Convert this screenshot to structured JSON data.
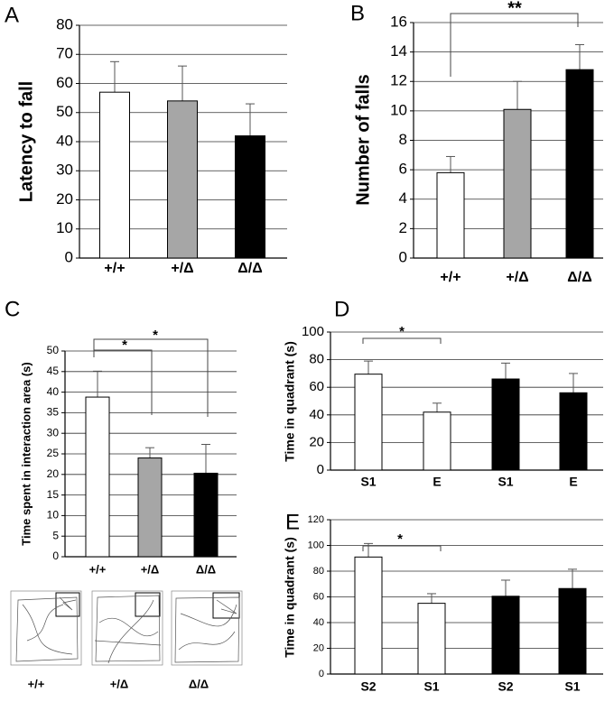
{
  "chart_data": [
    {
      "type": "bar",
      "panel": "A",
      "ylabel": "Latency to fall",
      "categories": [
        "+/+",
        "+/Δ",
        "Δ/Δ"
      ],
      "values": [
        57,
        54,
        42
      ],
      "errors": [
        10.5,
        12,
        11
      ],
      "colors": [
        "#ffffff",
        "#a6a6a6",
        "#000000"
      ],
      "ylim": [
        0,
        80
      ],
      "yticks": [
        0,
        10,
        20,
        30,
        40,
        50,
        60,
        70,
        80
      ],
      "grid": true,
      "annotations": []
    },
    {
      "type": "bar",
      "panel": "B",
      "ylabel": "Number of falls",
      "categories": [
        "+/+",
        "+/Δ",
        "Δ/Δ"
      ],
      "values": [
        5.8,
        10.1,
        12.8
      ],
      "errors": [
        1.1,
        1.9,
        1.7
      ],
      "colors": [
        "#ffffff",
        "#a6a6a6",
        "#000000"
      ],
      "ylim": [
        0,
        16
      ],
      "yticks": [
        0,
        2,
        4,
        6,
        8,
        10,
        12,
        14,
        16
      ],
      "grid": true,
      "annotations": [
        "**"
      ]
    },
    {
      "type": "bar",
      "panel": "C",
      "ylabel": "Time spent in interaction area (s)",
      "categories": [
        "+/+",
        "+/Δ",
        "Δ/Δ"
      ],
      "values": [
        38.8,
        24,
        20.3
      ],
      "errors": [
        6.3,
        2.5,
        7
      ],
      "colors": [
        "#ffffff",
        "#a6a6a6",
        "#000000"
      ],
      "ylim": [
        0,
        50
      ],
      "yticks": [
        0,
        5,
        10,
        15,
        20,
        25,
        30,
        35,
        40,
        45,
        50
      ],
      "grid": true,
      "annotations": [
        "*",
        "*"
      ],
      "track_labels": [
        "+/+",
        "+/Δ",
        "Δ/Δ"
      ]
    },
    {
      "type": "bar",
      "panel": "D",
      "ylabel": "Time  in quadrant (s)",
      "categories": [
        "S1",
        "E",
        "S1",
        "E"
      ],
      "values": [
        69.5,
        42,
        66,
        56
      ],
      "errors": [
        9.5,
        6.5,
        11.5,
        14
      ],
      "colors": [
        "#ffffff",
        "#ffffff",
        "#000000",
        "#000000"
      ],
      "ylim": [
        0,
        100
      ],
      "yticks": [
        0,
        20,
        40,
        60,
        80,
        100
      ],
      "grid": true,
      "annotations": [
        "*"
      ]
    },
    {
      "type": "bar",
      "panel": "E",
      "ylabel": "Time  in quadrant (s)",
      "categories": [
        "S2",
        "S1",
        "S2",
        "S1"
      ],
      "values": [
        91,
        55,
        60.5,
        66.5
      ],
      "errors": [
        10.5,
        7.5,
        12.5,
        15
      ],
      "colors": [
        "#ffffff",
        "#ffffff",
        "#000000",
        "#000000"
      ],
      "ylim": [
        0,
        120
      ],
      "yticks": [
        0,
        20,
        40,
        60,
        80,
        100,
        120
      ],
      "grid": true,
      "annotations": [
        "*"
      ]
    }
  ]
}
